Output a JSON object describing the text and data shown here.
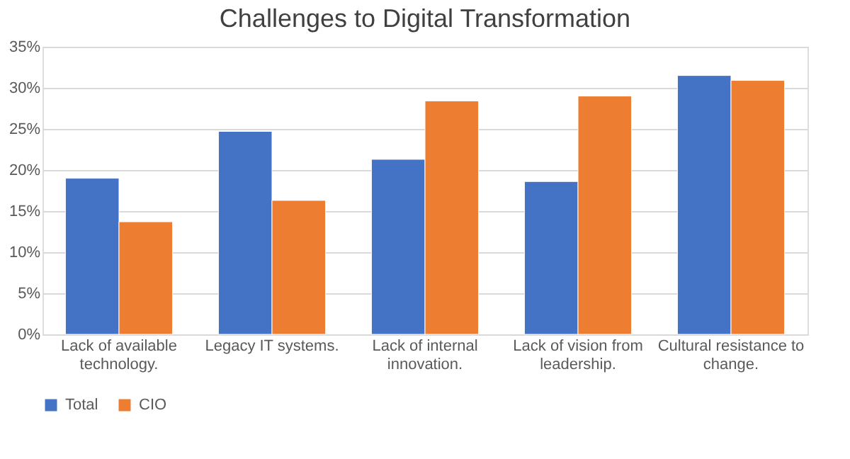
{
  "chart_data": {
    "type": "bar",
    "title": "Challenges to Digital Transformation",
    "categories": [
      "Lack of available technology.",
      "Legacy IT systems.",
      "Lack of internal innovation.",
      "Lack of vision from leadership.",
      "Cultural resistance to change."
    ],
    "series": [
      {
        "name": "Total",
        "color": "#4472c4",
        "values": [
          0.19,
          0.247,
          0.213,
          0.186,
          0.315
        ]
      },
      {
        "name": "CIO",
        "color": "#ed7d31",
        "values": [
          0.137,
          0.163,
          0.284,
          0.29,
          0.309
        ]
      }
    ],
    "ylim": [
      0,
      0.35
    ],
    "yticks": [
      {
        "value": 0,
        "label": "0%"
      },
      {
        "value": 0.05,
        "label": "5%"
      },
      {
        "value": 0.1,
        "label": "10%"
      },
      {
        "value": 0.15,
        "label": "15%"
      },
      {
        "value": 0.2,
        "label": "20%"
      },
      {
        "value": 0.25,
        "label": "25%"
      },
      {
        "value": 0.3,
        "label": "30%"
      },
      {
        "value": 0.35,
        "label": "35%"
      }
    ],
    "grid": "y",
    "legend": "bottom"
  }
}
